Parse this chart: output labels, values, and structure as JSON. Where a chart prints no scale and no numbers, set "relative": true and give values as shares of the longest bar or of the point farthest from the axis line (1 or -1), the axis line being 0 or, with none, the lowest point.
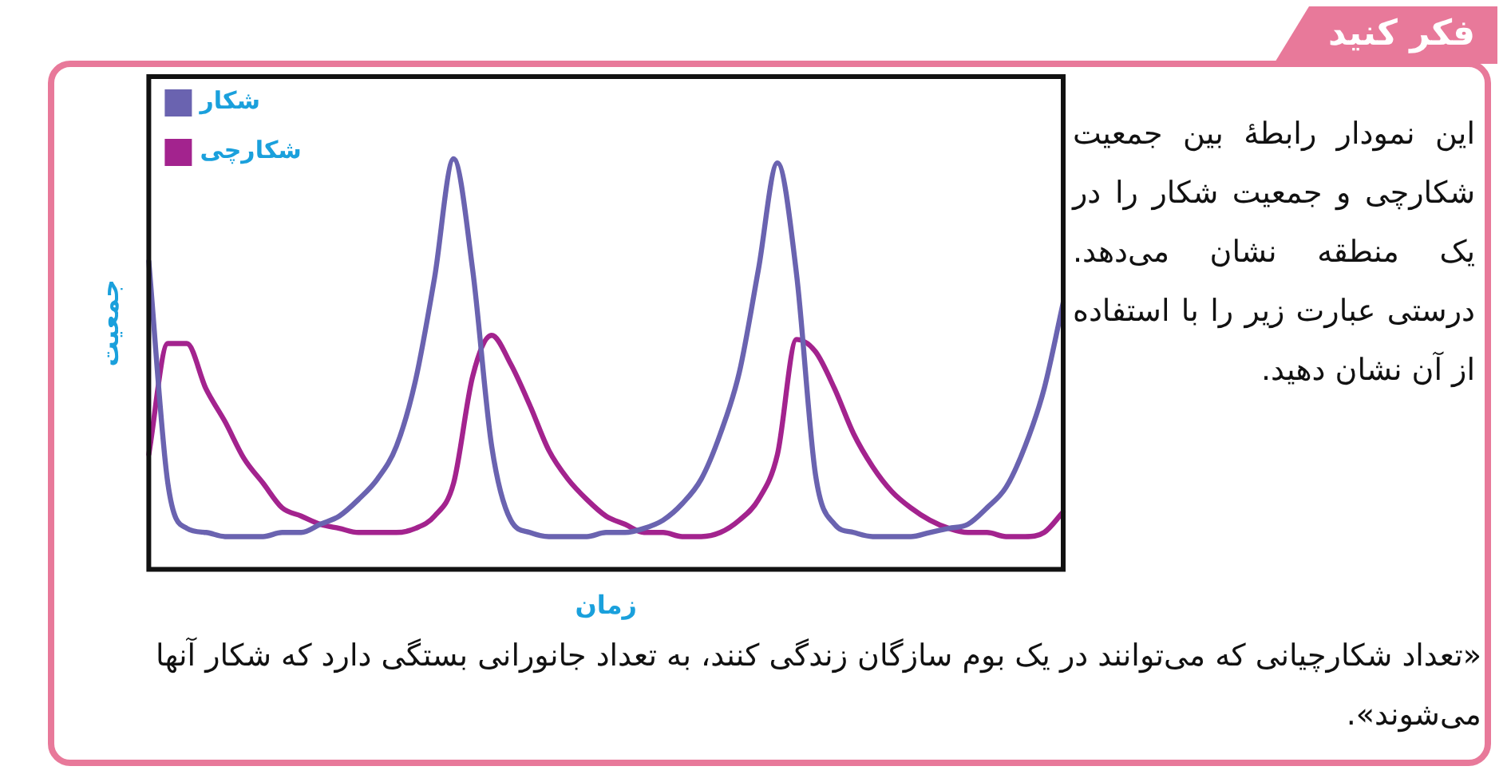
{
  "chart_data": {
    "type": "line",
    "title": "فکر کنید",
    "xlabel": "زمان",
    "ylabel": "جمعیت",
    "relative": true,
    "legend": "top left",
    "grid": false,
    "marker": "none",
    "line_style": "solid",
    "categories": [
      null,
      null,
      null,
      null,
      null,
      null,
      null,
      null,
      null,
      null,
      null,
      null,
      null,
      null,
      null,
      null,
      null,
      null,
      null,
      null,
      null,
      null,
      null,
      null,
      null,
      null,
      null,
      null,
      null,
      null,
      null,
      null,
      null,
      null,
      null,
      null,
      null,
      null,
      null,
      null,
      null,
      null,
      null,
      null,
      null,
      null,
      null,
      null,
      null
    ],
    "series": [
      {
        "name": "شکار",
        "color": "#6a63b0",
        "values": [
          0.75,
          0.21,
          0.1,
          0.09,
          0.08,
          0.08,
          0.08,
          0.09,
          0.09,
          0.11,
          0.13,
          0.17,
          0.22,
          0.3,
          0.46,
          0.71,
          1,
          0.73,
          0.3,
          0.12,
          0.09,
          0.08,
          0.08,
          0.08,
          0.09,
          0.09,
          0.1,
          0.12,
          0.16,
          0.22,
          0.33,
          0.48,
          0.73,
          0.99,
          0.72,
          0.23,
          0.11,
          0.09,
          0.08,
          0.08,
          0.08,
          0.09,
          0.1,
          0.11,
          0.15,
          0.2,
          0.3,
          0.44,
          0.65
        ]
      },
      {
        "name": "شکارچی",
        "color": "#a3238e",
        "values": [
          0.28,
          0.55,
          0.55,
          0.44,
          0.36,
          0.27,
          0.21,
          0.15,
          0.13,
          0.11,
          0.1,
          0.09,
          0.09,
          0.09,
          0.1,
          0.13,
          0.21,
          0.47,
          0.57,
          0.5,
          0.4,
          0.29,
          0.22,
          0.17,
          0.13,
          0.11,
          0.09,
          0.09,
          0.08,
          0.08,
          0.09,
          0.12,
          0.17,
          0.28,
          0.56,
          0.53,
          0.44,
          0.33,
          0.25,
          0.19,
          0.15,
          0.12,
          0.1,
          0.09,
          0.09,
          0.08,
          0.08,
          0.09,
          0.14
        ]
      }
    ],
    "annotations": [
      "این نمودار رابطهٔ بین جمعیت شکارچی و جمعیت شکار را در یک منطقه نشان می‌دهد. درستی عبارت زیر را با استفاده از آن نشان دهید.",
      "«تعداد شکارچیانی که می‌توانند در یک بوم سازگان زندگی کنند، به تعداد جانورانی بستگی دارد که شکار آنها می‌شوند»."
    ]
  }
}
